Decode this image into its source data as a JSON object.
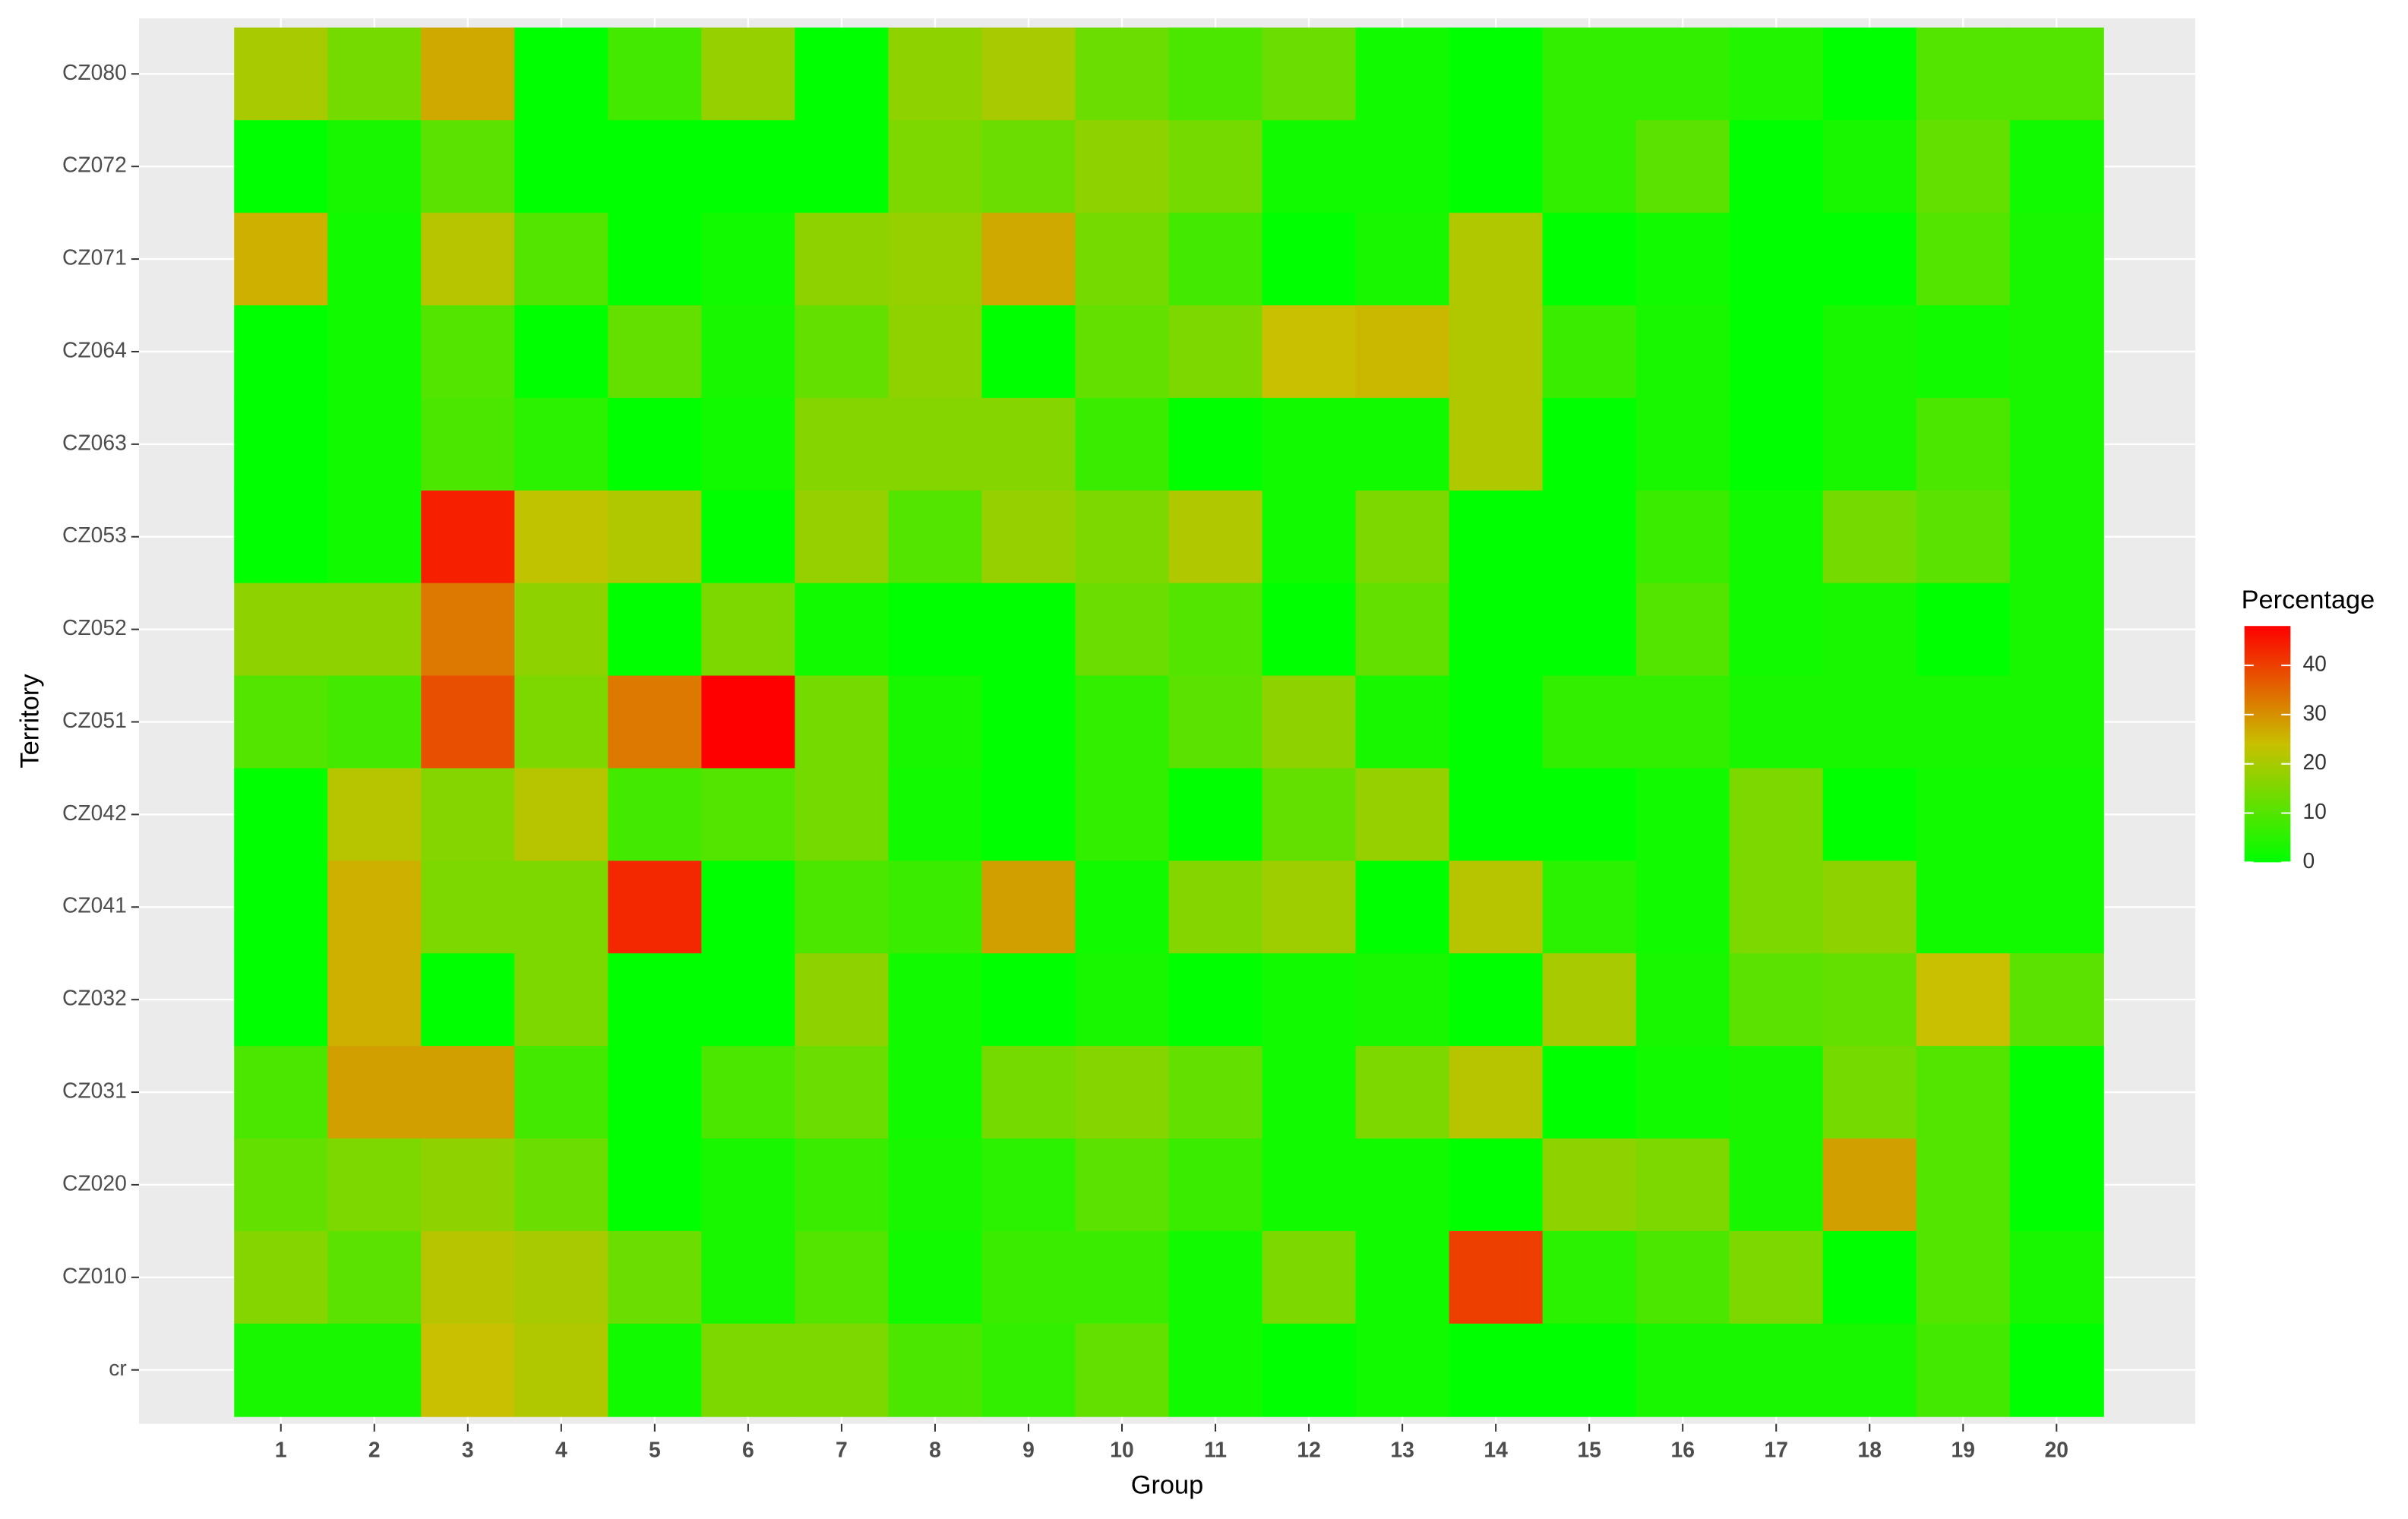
{
  "chart_data": {
    "type": "heatmap",
    "x_label": "Group",
    "y_label": "Territory",
    "categories": [
      "1",
      "2",
      "3",
      "4",
      "5",
      "6",
      "7",
      "8",
      "9",
      "10",
      "11",
      "12",
      "13",
      "14",
      "15",
      "16",
      "17",
      "18",
      "19",
      "20"
    ],
    "y_categories": [
      "CZ080",
      "CZ072",
      "CZ071",
      "CZ064",
      "CZ063",
      "CZ053",
      "CZ052",
      "CZ051",
      "CZ042",
      "CZ041",
      "CZ032",
      "CZ031",
      "CZ020",
      "CZ010",
      "cr"
    ],
    "values": [
      [
        20,
        14,
        27,
        0,
        8,
        18,
        0,
        17,
        20,
        13,
        9,
        13,
        2,
        0,
        6,
        6,
        4,
        0,
        10,
        10
      ],
      [
        0,
        3,
        11,
        0,
        0,
        0,
        0,
        15,
        13,
        17,
        14,
        2,
        2,
        0,
        6,
        11,
        0,
        3,
        12,
        2
      ],
      [
        26,
        2,
        22,
        10,
        0,
        2,
        17,
        18,
        27,
        14,
        8,
        0,
        3,
        21,
        0,
        2,
        0,
        0,
        10,
        3
      ],
      [
        0,
        2,
        10,
        0,
        12,
        3,
        12,
        17,
        0,
        12,
        15,
        24,
        25,
        21,
        7,
        3,
        0,
        3,
        2,
        3
      ],
      [
        0,
        2,
        9,
        5,
        0,
        2,
        16,
        16,
        16,
        7,
        0,
        2,
        2,
        21,
        0,
        3,
        0,
        3,
        9,
        3
      ],
      [
        0,
        2,
        44,
        23,
        21,
        0,
        18,
        10,
        18,
        15,
        21,
        2,
        15,
        0,
        0,
        7,
        2,
        14,
        11,
        3
      ],
      [
        17,
        17,
        33,
        17,
        0,
        15,
        2,
        0,
        0,
        13,
        10,
        0,
        12,
        0,
        0,
        10,
        2,
        3,
        0,
        3
      ],
      [
        10,
        8,
        38,
        15,
        33,
        48,
        14,
        3,
        0,
        6,
        11,
        17,
        3,
        0,
        6,
        6,
        3,
        3,
        3,
        3
      ],
      [
        0,
        22,
        16,
        22,
        8,
        10,
        14,
        2,
        0,
        6,
        0,
        12,
        18,
        0,
        0,
        2,
        15,
        0,
        2,
        2
      ],
      [
        0,
        26,
        15,
        15,
        43,
        0,
        9,
        7,
        28,
        2,
        16,
        19,
        0,
        22,
        5,
        2,
        15,
        17,
        2,
        2
      ],
      [
        0,
        26,
        0,
        15,
        0,
        0,
        17,
        2,
        0,
        3,
        0,
        2,
        3,
        0,
        20,
        3,
        11,
        12,
        24,
        11
      ],
      [
        9,
        28,
        28,
        8,
        0,
        9,
        13,
        2,
        14,
        16,
        12,
        2,
        15,
        22,
        0,
        2,
        3,
        14,
        10,
        0
      ],
      [
        12,
        15,
        17,
        13,
        0,
        3,
        7,
        3,
        5,
        11,
        7,
        2,
        2,
        0,
        17,
        15,
        3,
        28,
        10,
        0
      ],
      [
        16,
        11,
        22,
        20,
        13,
        3,
        10,
        2,
        7,
        7,
        2,
        15,
        2,
        40,
        5,
        9,
        15,
        0,
        10,
        3
      ],
      [
        3,
        3,
        24,
        21,
        2,
        15,
        15,
        9,
        6,
        12,
        2,
        0,
        2,
        0,
        0,
        3,
        3,
        3,
        8,
        0
      ]
    ],
    "colorbar": {
      "title": "Percentage",
      "lim": [
        0,
        48
      ],
      "ticks": [
        0,
        10,
        20,
        30,
        40
      ],
      "colors": [
        "#00ff00",
        "#c8c000",
        "#ff0000"
      ]
    },
    "grid": true
  }
}
